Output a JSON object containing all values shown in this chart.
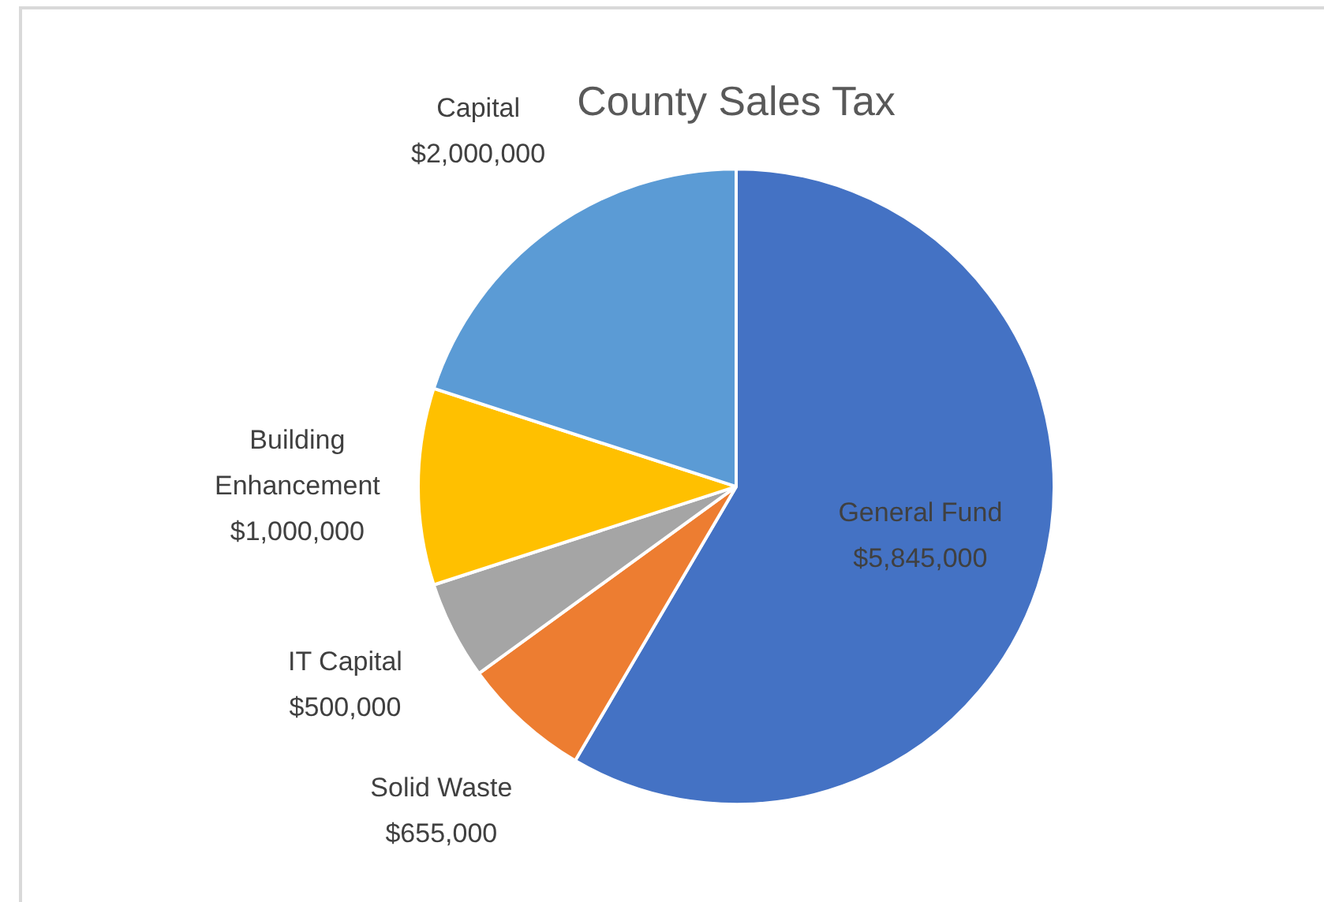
{
  "chart_data": {
    "type": "pie",
    "title": "County Sales Tax",
    "categories": [
      "General Fund",
      "Solid Waste",
      "IT Capital",
      "Building Enhancement",
      "Capital"
    ],
    "values": [
      5845000,
      655000,
      500000,
      1000000,
      2000000
    ],
    "colors": [
      "#4472c4",
      "#ed7d31",
      "#a5a5a5",
      "#ffc000",
      "#5b9bd5"
    ],
    "value_labels": [
      "$5,845,000",
      "$655,000",
      "$500,000",
      "$1,000,000",
      "$2,000,000"
    ],
    "legend": false
  }
}
